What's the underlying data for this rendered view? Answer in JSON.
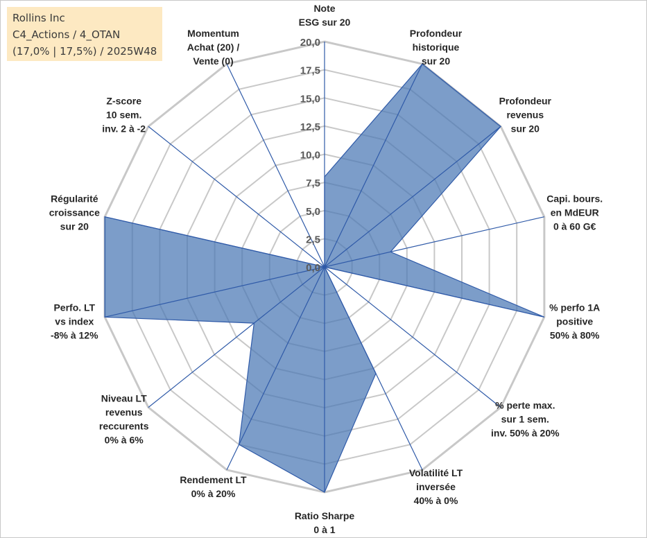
{
  "header": {
    "line1": "Rollins Inc",
    "line2": "C4_Actions / 4_OTAN",
    "line3": "(17,0% | 17,5%) / 2025W48"
  },
  "colors": {
    "fill": "#4a77b4",
    "fill_opacity": 0.72,
    "stroke": "#2f5aa8",
    "grid": "#c8c8c8",
    "title_bg": "#fde9c2"
  },
  "chart_data": {
    "type": "radar",
    "rmin": 0,
    "rmax": 20,
    "step": 2.5,
    "tick_labels": [
      "0,0",
      "2,5",
      "5,0",
      "7,5",
      "10,0",
      "12,5",
      "15,0",
      "17,5",
      "20,0"
    ],
    "axes": [
      {
        "label": [
          "Note",
          "ESG sur 20"
        ],
        "value": 8
      },
      {
        "label": [
          "Profondeur",
          "historique",
          "sur 20"
        ],
        "value": 20
      },
      {
        "label": [
          "Profondeur",
          "revenus",
          "sur 20"
        ],
        "value": 20
      },
      {
        "label": [
          "Capi. bours.",
          "en MdEUR",
          "0 à 60 G€"
        ],
        "value": 6
      },
      {
        "label": [
          "% perfo 1A",
          "positive",
          "50% à 80%"
        ],
        "value": 20
      },
      {
        "label": [
          "% perte max.",
          "sur 1 sem.",
          "inv. 50% à 20%"
        ],
        "value": 0
      },
      {
        "label": [
          "Volatilité LT",
          "inversée",
          "40% à 0%"
        ],
        "value": 10.5
      },
      {
        "label": [
          "Ratio Sharpe",
          "0 à 1"
        ],
        "value": 20
      },
      {
        "label": [
          "Rendement LT",
          "0% à 20%"
        ],
        "value": 17.5
      },
      {
        "label": [
          "Niveau LT",
          "revenus",
          "reccurents",
          "0% à 6%"
        ],
        "value": 8
      },
      {
        "label": [
          "Perfo. LT",
          "vs index",
          "-8% à 12%"
        ],
        "value": 20
      },
      {
        "label": [
          "Régularité",
          "croissance",
          "sur 20"
        ],
        "value": 20
      },
      {
        "label": [
          "Z-score",
          "10 sem.",
          "inv. 2 à -2"
        ],
        "value": 0
      },
      {
        "label": [
          "Momentum",
          "Achat (20) /",
          "Vente (0)"
        ],
        "value": 0
      }
    ]
  }
}
